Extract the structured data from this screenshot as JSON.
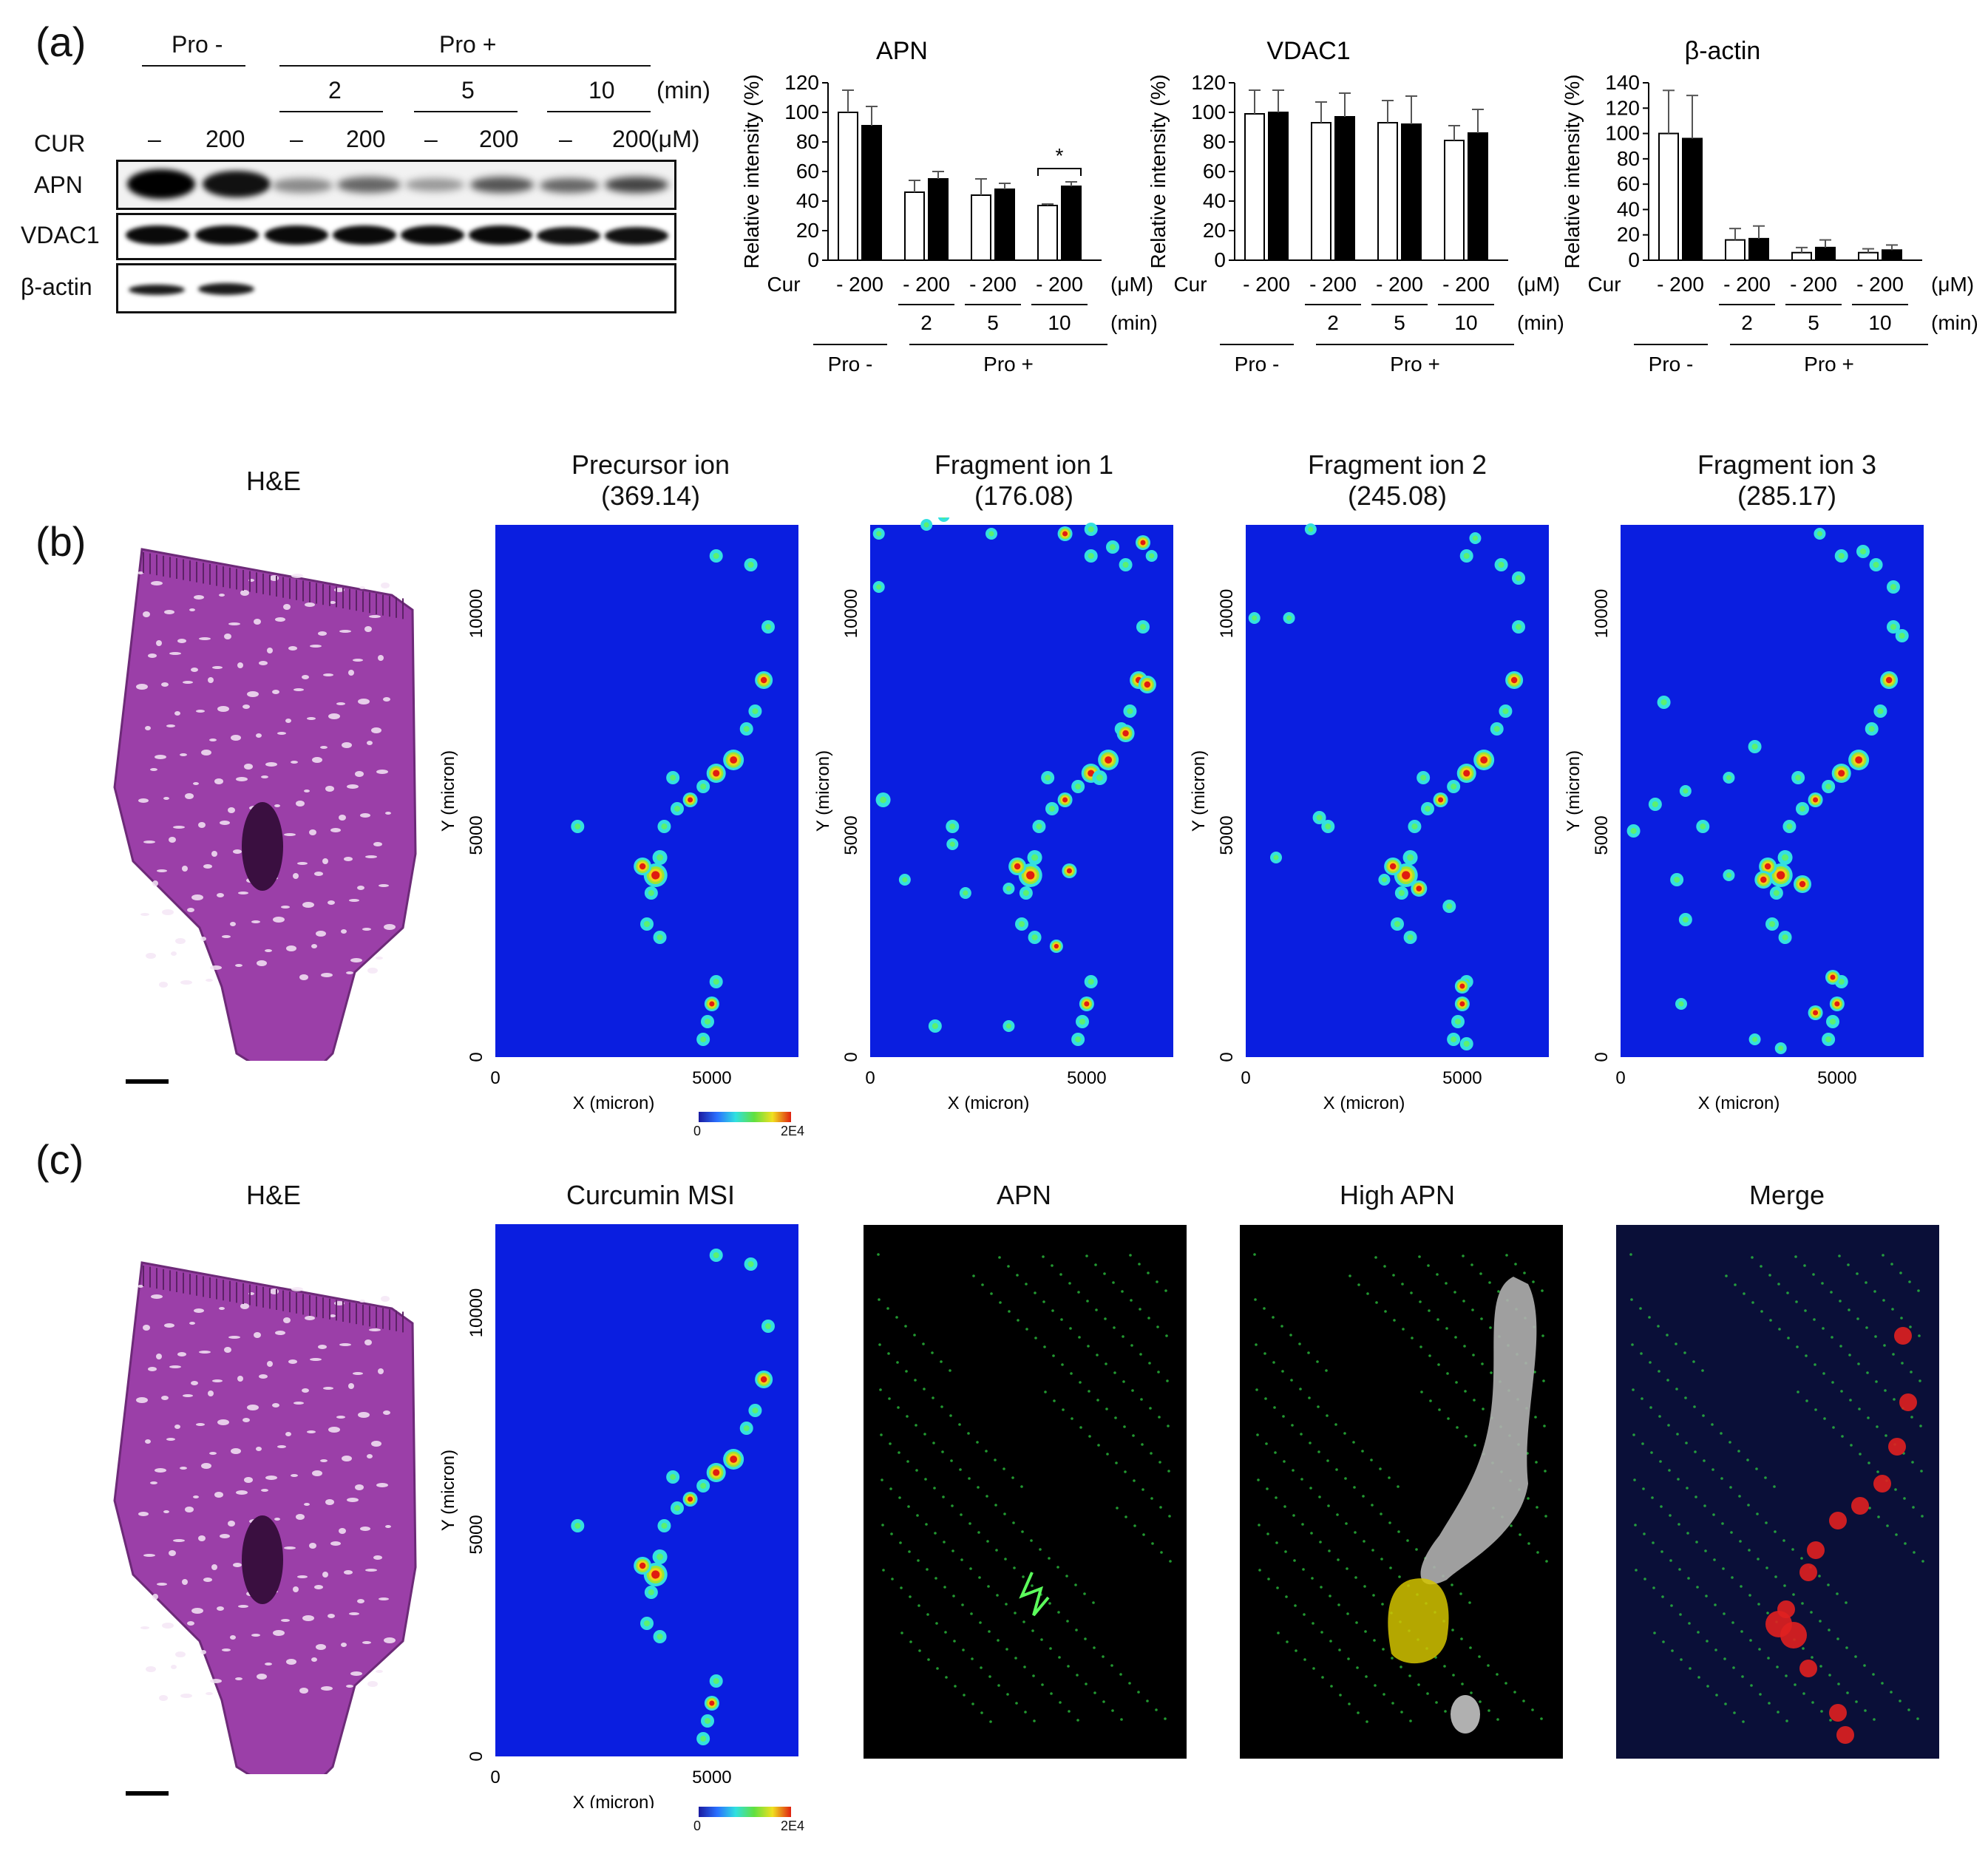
{
  "panel_a": {
    "letter": "(a)",
    "western": {
      "group_pro_minus": "Pro -",
      "group_pro_plus": "Pro +",
      "times": [
        "2",
        "5",
        "10"
      ],
      "time_unit": "(min)",
      "treatment_label": "CUR",
      "doses": [
        "–",
        "200",
        "–",
        "200",
        "–",
        "200",
        "–",
        "200"
      ],
      "dose_unit": "(μM)",
      "rows": [
        "APN",
        "VDAC1",
        "β-actin"
      ]
    },
    "bar_axis": {
      "ylabel": "Relative intensity (%)",
      "treatment": "Cur",
      "dose_pair": "- 200",
      "dose_unit": "(μM)",
      "times": [
        "2",
        "5",
        "10"
      ],
      "time_unit": "(min)",
      "group_pro_minus": "Pro -",
      "group_pro_plus": "Pro +"
    }
  },
  "chart_data": [
    {
      "type": "bar",
      "title": "APN",
      "ylabel": "Relative intensity (%)",
      "ylim": [
        0,
        120
      ],
      "yticks": [
        0,
        20,
        40,
        60,
        80,
        100,
        120
      ],
      "categories": [
        "Pro -",
        "Pro + 2 min",
        "Pro + 5 min",
        "Pro + 10 min"
      ],
      "series": [
        {
          "values": [
            100,
            46,
            44,
            37
          ],
          "errors": [
            15,
            8,
            11,
            1
          ],
          "color": "#ffffff"
        },
        {
          "values": [
            91,
            55,
            48,
            50
          ],
          "errors": [
            13,
            5,
            4,
            3
          ],
          "color": "#000000"
        }
      ],
      "annotation": "*"
    },
    {
      "type": "bar",
      "title": "VDAC1",
      "ylabel": "Relative intensity (%)",
      "ylim": [
        0,
        120
      ],
      "yticks": [
        0,
        20,
        40,
        60,
        80,
        100,
        120
      ],
      "categories": [
        "Pro -",
        "Pro + 2 min",
        "Pro + 5 min",
        "Pro + 10 min"
      ],
      "series": [
        {
          "values": [
            99,
            93,
            93,
            81
          ],
          "errors": [
            16,
            14,
            15,
            10
          ],
          "color": "#ffffff"
        },
        {
          "values": [
            100,
            97,
            92,
            86
          ],
          "errors": [
            15,
            16,
            19,
            16
          ],
          "color": "#000000"
        }
      ]
    },
    {
      "type": "bar",
      "title": "β-actin",
      "ylabel": "Relative intensity (%)",
      "ylim": [
        0,
        140
      ],
      "yticks": [
        0,
        20,
        40,
        60,
        80,
        100,
        120,
        140
      ],
      "categories": [
        "Pro -",
        "Pro + 2 min",
        "Pro + 5 min",
        "Pro + 10 min"
      ],
      "series": [
        {
          "values": [
            100,
            16,
            6,
            6
          ],
          "errors": [
            34,
            9,
            4,
            3
          ],
          "color": "#ffffff"
        },
        {
          "values": [
            96,
            17,
            10,
            8
          ],
          "errors": [
            34,
            10,
            6,
            4
          ],
          "color": "#000000"
        }
      ]
    }
  ],
  "panel_b": {
    "letter": "(b)",
    "he_title": "H&E",
    "maps": [
      {
        "title": "Precursor ion",
        "mz": "(369.14)"
      },
      {
        "title": "Fragment ion 1",
        "mz": "(176.08)"
      },
      {
        "title": "Fragment ion 2",
        "mz": "(245.08)"
      },
      {
        "title": "Fragment ion 3",
        "mz": "(285.17)"
      }
    ],
    "x_label": "X (micron)",
    "y_label": "Y (micron)",
    "x_ticks": [
      "0",
      "5000"
    ],
    "y_ticks": [
      "0",
      "5000",
      "10000"
    ],
    "colorbar_min": "0",
    "colorbar_max": "2E4"
  },
  "panel_c": {
    "letter": "(c)",
    "titles": [
      "H&E",
      "Curcumin MSI",
      "APN",
      "High APN",
      "Merge"
    ],
    "x_label": "X (micron)",
    "y_label": "Y (micron)",
    "x_ticks": [
      "0",
      "5000"
    ],
    "y_ticks": [
      "0",
      "5000",
      "10000"
    ],
    "colorbar_min": "0",
    "colorbar_max": "2E4"
  },
  "colors": {
    "msi_background": "#0a1ee0",
    "he_stain": "#9b3fa8",
    "apn_signal": "#2ecc40",
    "high_apn_region": "#b0b0b0",
    "high_apn_highlight": "#d4c400",
    "merge_signal": "#e02020"
  }
}
